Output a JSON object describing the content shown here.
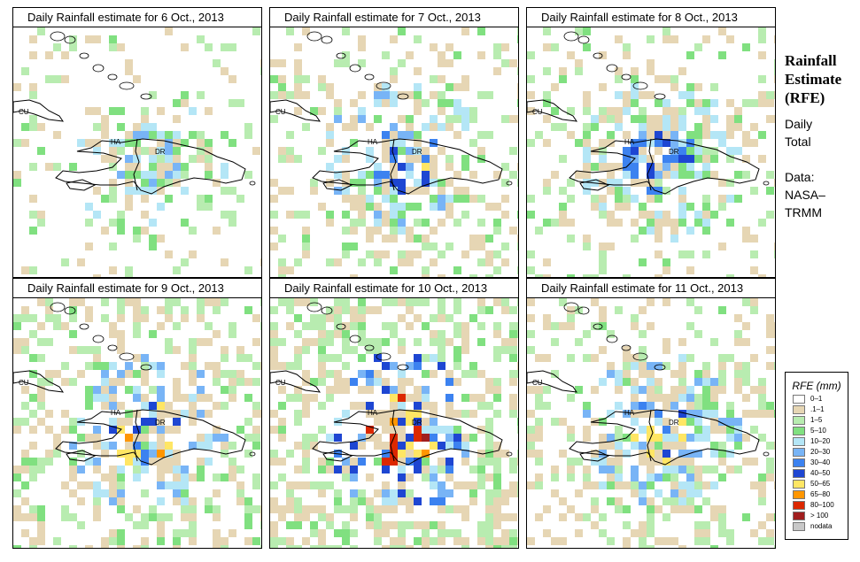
{
  "panels": [
    {
      "title": "Daily Rainfall estimate for  6 Oct., 2013",
      "intensity": 0.6
    },
    {
      "title": "Daily Rainfall estimate for  7 Oct., 2013",
      "intensity": 1.2
    },
    {
      "title": "Daily Rainfall estimate for  8 Oct., 2013",
      "intensity": 1.0
    },
    {
      "title": "Daily Rainfall estimate for  9 Oct., 2013",
      "intensity": 1.6
    },
    {
      "title": "Daily Rainfall estimate for  10 Oct., 2013",
      "intensity": 2.4
    },
    {
      "title": "Daily Rainfall estimate for  11 Oct., 2013",
      "intensity": 1.4
    }
  ],
  "map_labels": {
    "cuba": "CU",
    "haiti": "HA",
    "dominican_republic": "DR"
  },
  "sidebar": {
    "title_lines": [
      "Rainfall",
      "Estimate",
      "(RFE)"
    ],
    "period_lines": [
      "Daily",
      "Total"
    ],
    "source_lines": [
      "Data:",
      "NASA–",
      "TRMM"
    ]
  },
  "legend": {
    "title": "RFE (mm)",
    "bins": [
      {
        "label": "0–1",
        "color": "#ffffff"
      },
      {
        "label": ".1–1",
        "color": "#e6d6b4"
      },
      {
        "label": "1–5",
        "color": "#b8ecb0"
      },
      {
        "label": "5–10",
        "color": "#80e080"
      },
      {
        "label": "10–20",
        "color": "#b4e6f6"
      },
      {
        "label": "20–30",
        "color": "#78b4f6"
      },
      {
        "label": "30–40",
        "color": "#3c82f0"
      },
      {
        "label": "40–50",
        "color": "#1e46d2"
      },
      {
        "label": "50–65",
        "color": "#ffe664"
      },
      {
        "label": "65–80",
        "color": "#ff9600"
      },
      {
        "label": "80–100",
        "color": "#dc2800"
      },
      {
        "label": "> 100",
        "color": "#a01e1e"
      },
      {
        "label": "nodata",
        "color": "#c8c8c8"
      }
    ]
  }
}
